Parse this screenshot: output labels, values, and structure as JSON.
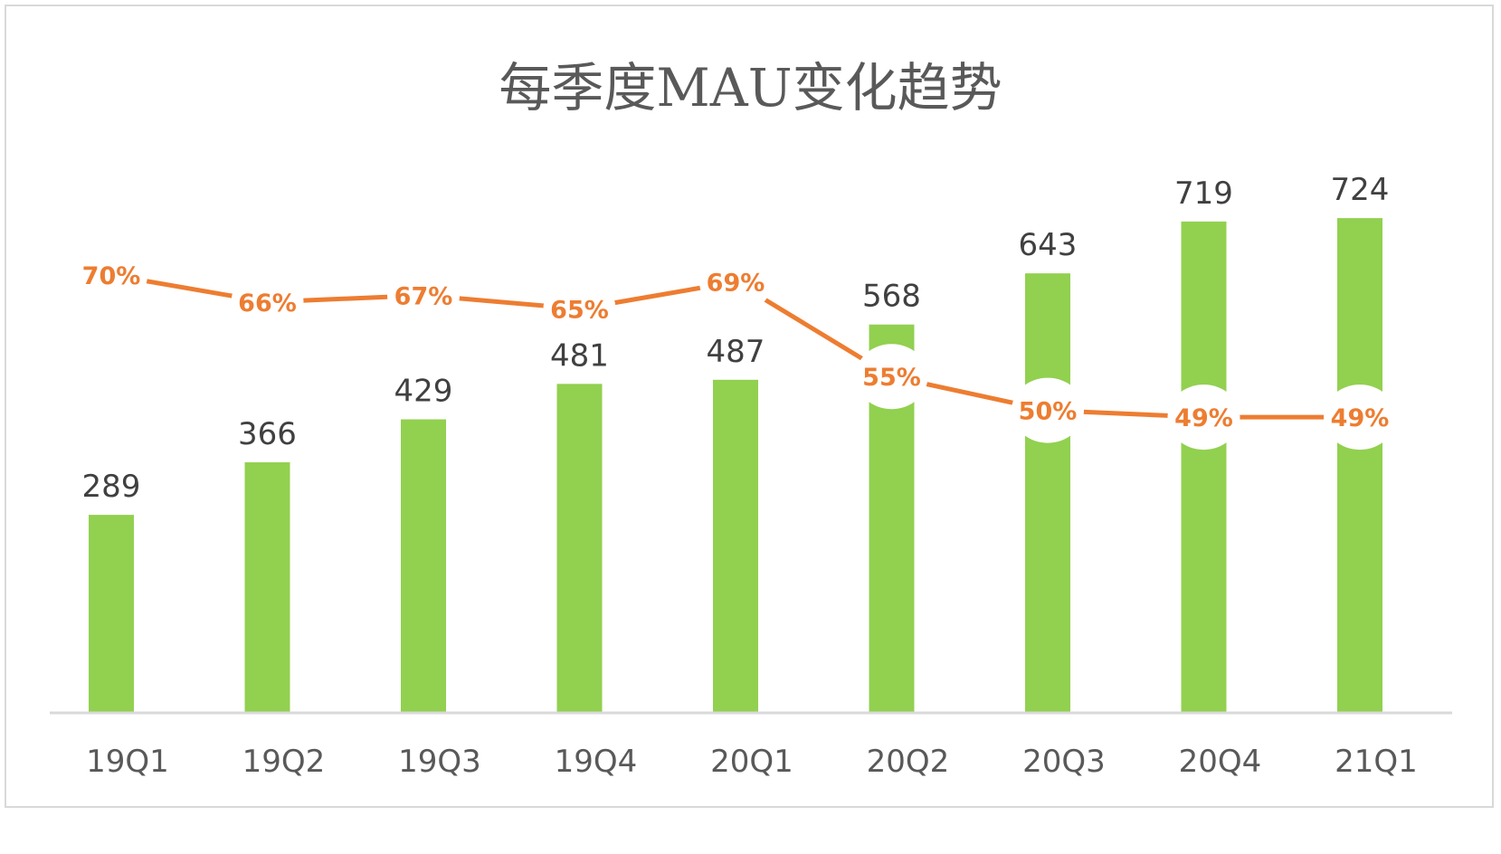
{
  "chart_data": {
    "type": "bar+line",
    "title": "每季度MAU变化趋势",
    "categories": [
      "19Q1",
      "19Q2",
      "19Q3",
      "19Q4",
      "20Q1",
      "20Q2",
      "20Q3",
      "20Q4",
      "21Q1"
    ],
    "series": [
      {
        "type": "bar",
        "values": [
          289,
          366,
          429,
          481,
          487,
          568,
          643,
          719,
          724
        ],
        "labels": [
          "289",
          "366",
          "429",
          "481",
          "487",
          "568",
          "643",
          "719",
          "724"
        ],
        "color": "#92d050"
      },
      {
        "type": "line",
        "values": [
          70,
          66,
          67,
          65,
          69,
          55,
          50,
          49,
          49
        ],
        "labels": [
          "70%",
          "66%",
          "67%",
          "65%",
          "69%",
          "55%",
          "50%",
          "49%",
          "49%"
        ],
        "color": "#ed7d31"
      }
    ],
    "grid": false,
    "legend": "none"
  }
}
